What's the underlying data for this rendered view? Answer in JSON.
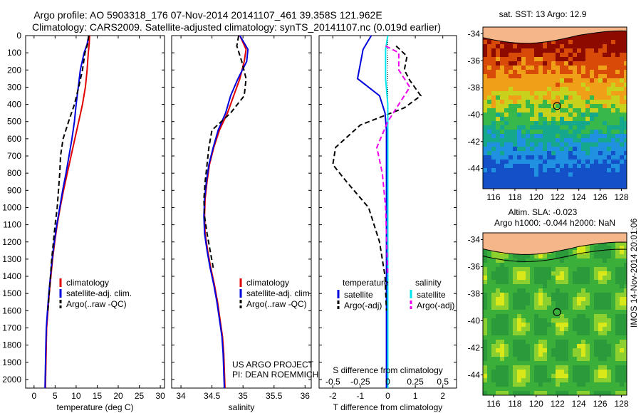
{
  "header": {
    "line1": "Argo profile: AO 5903318_176 07-Nov-2014 20141107_461 39.358S 121.962E",
    "line2": "Climatology: CARS2009. Satellite-adjusted climatology: synTS_20141107.nc (0.019d earlier)"
  },
  "colors": {
    "climatology": "#e00000",
    "satellite": "#0000dd",
    "argo": "#000000",
    "satellite_diff": "#00e5ee",
    "argo_diff": "#ee00ee"
  },
  "chart_data": [
    {
      "type": "line",
      "xlabel": "temperature (deg C)",
      "ylabel": "",
      "xlim": [
        -2,
        31
      ],
      "ylim": [
        2050,
        0
      ],
      "xticks": [
        "0",
        "5",
        "10",
        "15",
        "20",
        "25",
        "30"
      ],
      "yticks": [
        "0",
        "100",
        "200",
        "300",
        "400",
        "500",
        "600",
        "700",
        "800",
        "900",
        "1000",
        "1100",
        "1200",
        "1300",
        "1400",
        "1500",
        "1600",
        "1700",
        "1800",
        "1900",
        "2000"
      ],
      "legend": [
        "climatology",
        "satellite-adj. clim.",
        "Argo(..raw -QC)"
      ],
      "series": [
        {
          "name": "climatology",
          "x": [
            13.2,
            13.1,
            12.9,
            12.6,
            12.2,
            11.5,
            10.6,
            9.7,
            8.8,
            7.9,
            7.0,
            6.2,
            5.5,
            4.9,
            4.4,
            4.0,
            3.6,
            3.3,
            3.0,
            2.9,
            2.7
          ],
          "y": [
            0,
            50,
            100,
            200,
            300,
            400,
            500,
            600,
            700,
            800,
            900,
            1000,
            1100,
            1200,
            1300,
            1400,
            1500,
            1600,
            1700,
            1800,
            2050
          ]
        },
        {
          "name": "satellite-adj. clim.",
          "x": [
            13.0,
            12.6,
            11.9,
            11.0,
            10.5,
            10.0,
            9.6,
            9.0,
            8.3,
            7.6,
            6.8,
            6.1,
            5.4,
            4.8,
            4.3,
            3.9,
            3.5,
            3.2,
            2.9,
            2.8,
            2.6
          ],
          "y": [
            0,
            50,
            100,
            200,
            300,
            400,
            500,
            600,
            700,
            800,
            900,
            1000,
            1100,
            1200,
            1300,
            1400,
            1500,
            1600,
            1700,
            1800,
            2050
          ]
        },
        {
          "name": "Argo(..raw -QC)",
          "x": [
            13.0,
            12.7,
            12.1,
            11.5,
            10.6,
            9.6,
            8.2,
            6.9,
            6.3,
            6.1,
            5.8,
            5.5,
            5.0,
            4.6,
            4.2,
            3.9,
            3.6,
            3.3
          ],
          "y": [
            0,
            50,
            100,
            200,
            300,
            400,
            500,
            600,
            700,
            800,
            900,
            1000,
            1100,
            1200,
            1300,
            1400,
            1500,
            1600
          ]
        }
      ]
    },
    {
      "type": "line",
      "xlabel": "salinity",
      "ylabel": "",
      "xlim": [
        33.85,
        36.1
      ],
      "ylim": [
        2050,
        0
      ],
      "xticks": [
        "34",
        "34.5",
        "35",
        "35.5",
        "36"
      ],
      "legend": [
        "climatology",
        "satellite-adj. clim.",
        "Argo(..raw -QC)"
      ],
      "annotation": [
        "US ARGO PROJECT",
        "PI: DEAN ROEMMICH"
      ],
      "series": [
        {
          "name": "climatology",
          "x": [
            34.95,
            35.05,
            35.02,
            34.95,
            34.85,
            34.75,
            34.62,
            34.53,
            34.46,
            34.42,
            34.39,
            34.38,
            34.39,
            34.43,
            34.48,
            34.54,
            34.59,
            34.63,
            34.67,
            34.69,
            34.71
          ],
          "y": [
            0,
            80,
            150,
            250,
            350,
            450,
            550,
            650,
            750,
            850,
            950,
            1050,
            1150,
            1250,
            1350,
            1450,
            1550,
            1650,
            1750,
            1850,
            2050
          ]
        },
        {
          "name": "satellite-adj. clim.",
          "x": [
            34.95,
            35.08,
            35.06,
            34.92,
            34.8,
            34.72,
            34.6,
            34.52,
            34.45,
            34.41,
            34.38,
            34.37,
            34.38,
            34.42,
            34.47,
            34.53,
            34.58,
            34.62,
            34.66,
            34.68,
            34.7
          ],
          "y": [
            0,
            80,
            150,
            250,
            350,
            450,
            550,
            650,
            750,
            850,
            950,
            1050,
            1150,
            1250,
            1350,
            1450,
            1550,
            1650,
            1750,
            1850,
            2050
          ]
        },
        {
          "name": "Argo(..raw -QC)",
          "x": [
            34.93,
            34.9,
            34.98,
            35.05,
            35.02,
            34.8,
            34.5,
            34.45,
            34.42,
            34.39,
            34.37,
            34.38,
            34.42,
            34.47,
            34.52
          ],
          "y": [
            0,
            60,
            150,
            250,
            350,
            450,
            550,
            650,
            750,
            850,
            950,
            1050,
            1150,
            1250,
            1350
          ]
        }
      ]
    },
    {
      "type": "line",
      "xlabel": "T difference from climatology",
      "x2label": "S difference from climatology",
      "xlim": [
        -2.5,
        2.5
      ],
      "ylim": [
        2050,
        0
      ],
      "xticks": [
        "-2",
        "-1",
        "0",
        "1",
        "2"
      ],
      "x2ticks": [
        "-0.5",
        "-0.25",
        "0",
        "0.25",
        "0.5"
      ],
      "legend_headers": [
        "temperature",
        "salinity"
      ],
      "legend": [
        "satellite",
        "Argo(-adj)",
        "satellite",
        "Argo(-adj)"
      ],
      "series": [
        {
          "name": "satellite",
          "axis": "T",
          "x": [
            -0.6,
            -0.9,
            -1.1,
            -0.3,
            -0.1,
            -0.05,
            -0.05,
            -0.05,
            -0.05,
            -0.05,
            -0.05,
            -0.05,
            -0.05,
            -0.05
          ],
          "y": [
            0,
            80,
            250,
            350,
            450,
            550,
            700,
            900,
            1100,
            1300,
            1500,
            1700,
            1900,
            2050
          ]
        },
        {
          "name": "Argo(-adj)",
          "axis": "T",
          "x": [
            0.3,
            0.7,
            0.6,
            0.8,
            1.2,
            0.6,
            -1.0,
            -1.9,
            -2.0,
            -1.5,
            -0.7,
            -0.3,
            -0.1,
            -0.05
          ],
          "y": [
            60,
            120,
            200,
            260,
            350,
            420,
            520,
            650,
            750,
            850,
            1000,
            1200,
            1400,
            1600
          ]
        },
        {
          "name": "satellite",
          "axis": "S",
          "x": [
            0.0,
            -0.02,
            -0.02,
            0.0,
            0.0,
            0.0,
            0.0,
            0.0,
            0.0,
            0.0,
            0.0
          ],
          "y": [
            0,
            80,
            250,
            400,
            600,
            800,
            1000,
            1200,
            1400,
            1700,
            2050
          ]
        },
        {
          "name": "Argo(-adj)",
          "axis": "S",
          "x": [
            -0.02,
            0.1,
            0.1,
            0.2,
            0.1,
            0.0,
            -0.1,
            -0.05,
            -0.02,
            -0.01,
            0.0
          ],
          "y": [
            60,
            100,
            200,
            300,
            400,
            500,
            650,
            800,
            1000,
            1200,
            1400
          ]
        }
      ]
    },
    {
      "type": "heatmap",
      "title": "sat. SST: 13 Argo: 12.9",
      "xlim": [
        115,
        128.5
      ],
      "ylim": [
        -45.5,
        -33.5
      ],
      "xticks": [
        "116",
        "118",
        "120",
        "122",
        "124",
        "126",
        "128"
      ],
      "yticks": [
        "-34",
        "-36",
        "-38",
        "-40",
        "-42",
        "-44"
      ],
      "marker": {
        "lon": 121.96,
        "lat": -39.36
      }
    },
    {
      "type": "heatmap",
      "title": "Altim. SLA: -0.023",
      "subtitle": "Argo h1000: -0.044 h2000: NaN",
      "xlim": [
        115,
        128.5
      ],
      "ylim": [
        -45.5,
        -33.5
      ],
      "xticks": [
        "116",
        "118",
        "120",
        "122",
        "124",
        "126",
        "128"
      ],
      "yticks": [
        "-34",
        "-36",
        "-38",
        "-40",
        "-42",
        "-44"
      ],
      "marker": {
        "lon": 121.96,
        "lat": -39.36
      }
    }
  ],
  "side_stamp": "IMOS 14-Nov-2014 20:01:06"
}
